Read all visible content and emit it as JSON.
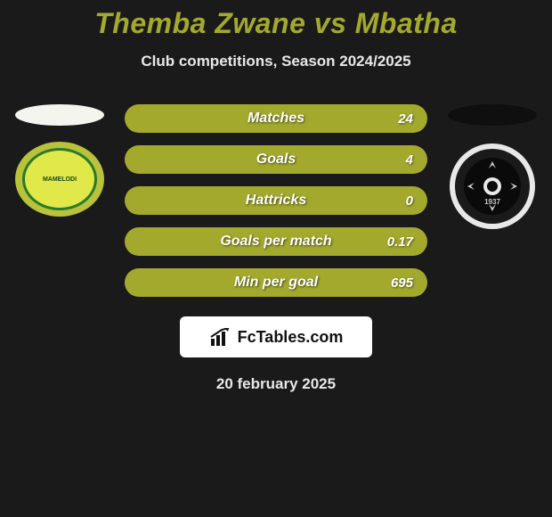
{
  "title_text": "Themba Zwane vs Mbatha",
  "title_color": "#a3a92d",
  "subtitle": "Club competitions, Season 2024/2025",
  "left": {
    "ellipse_color": "#f5f5f0",
    "badge_bg": "#b9c23a",
    "badge_inner_bg": "#e0e84a",
    "badge_border": "#2a7a2a",
    "badge_text": "MAMELODI",
    "badge_text_color": "#1a4a1a"
  },
  "right": {
    "ellipse_color": "#0f0f0f",
    "badge_outer": "#e8e8e8",
    "badge_ring": "#1a1a1a",
    "badge_core": "#0a0a0a",
    "badge_cross": "#d0d0d0",
    "badge_center": "#e8e8e8",
    "badge_year": "1937"
  },
  "stats": [
    {
      "label": "Matches",
      "value": "24",
      "bar_color": "#a3a92d"
    },
    {
      "label": "Goals",
      "value": "4",
      "bar_color": "#a3a92d"
    },
    {
      "label": "Hattricks",
      "value": "0",
      "bar_color": "#a3a92d"
    },
    {
      "label": "Goals per match",
      "value": "0.17",
      "bar_color": "#a3a92d"
    },
    {
      "label": "Min per goal",
      "value": "695",
      "bar_color": "#a3a92d"
    }
  ],
  "brand": {
    "icon_color": "#111111",
    "text": "FcTables.com"
  },
  "date_text": "20 february 2025",
  "background_color": "#1a1a1a"
}
